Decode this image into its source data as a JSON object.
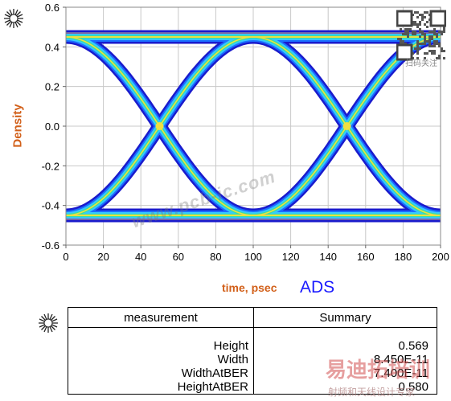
{
  "chart_data": {
    "type": "heatmap",
    "title": "",
    "xlabel": "time, psec",
    "ylabel": "Density",
    "xlim": [
      0,
      200
    ],
    "ylim": [
      -0.6,
      0.6
    ],
    "x_ticks": [
      "0",
      "20",
      "40",
      "60",
      "80",
      "100",
      "120",
      "140",
      "160",
      "180",
      "200"
    ],
    "y_ticks": [
      "0.6",
      "0.4",
      "0.2",
      "0.0",
      "-0.2",
      "-0.4",
      "-0.6"
    ],
    "grid": true,
    "eye_levels": {
      "high": 0.45,
      "low": -0.45
    },
    "crossings": [
      {
        "x": 50,
        "y": 0.0
      },
      {
        "x": 150,
        "y": 0.0
      }
    ],
    "density_colors": [
      "#1a1acc",
      "#1a6cff",
      "#36c8ff",
      "#38e0a0",
      "#f0e040",
      "#ff5a2a"
    ]
  },
  "brand": "ADS",
  "summary_table": {
    "headers": [
      "measurement",
      "Summary"
    ],
    "rows": [
      {
        "name": "Height",
        "value": "0.569"
      },
      {
        "name": "Width",
        "value": "8.450E-11"
      },
      {
        "name": "WidthAtBER",
        "value": "7.400E-11"
      },
      {
        "name": "HeightAtBER",
        "value": "0.580"
      }
    ]
  },
  "watermarks": {
    "url": "www.pcb-ic.com",
    "cn_brand": "易迪拓培训",
    "cn_sub": "射频和天线设计专家",
    "qr_caption": "扫码关注"
  },
  "icons": [
    "agilent-logo-icon",
    "qr-code-icon"
  ]
}
